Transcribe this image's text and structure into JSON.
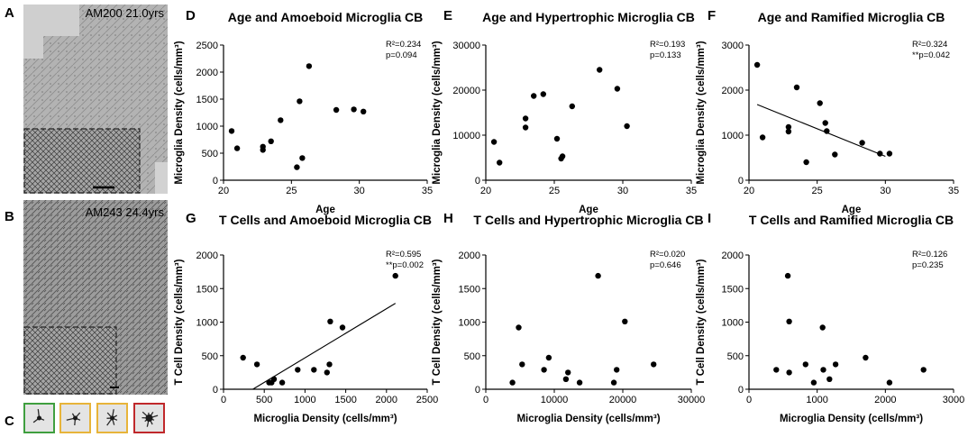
{
  "images": {
    "A": {
      "label": "A",
      "caption": "AM200 21.0yrs"
    },
    "B": {
      "label": "B",
      "caption": "AM243 24.4yrs"
    },
    "C": {
      "label": "C",
      "border_colors": [
        "#3f9f3f",
        "#e7b43a",
        "#e7b43a",
        "#c0282b"
      ]
    }
  },
  "chart_data": [
    {
      "id": "D",
      "type": "scatter",
      "title": "Age and Amoeboid Microglia CB",
      "xlabel": "Age",
      "ylabel": "Microglia Density (cells/mm³)",
      "xlim": [
        20,
        35
      ],
      "ylim": [
        0,
        2500
      ],
      "xticks": [
        20,
        25,
        30,
        35
      ],
      "yticks": [
        0,
        500,
        1000,
        1500,
        2000,
        2500
      ],
      "stat_r2": "R²=0.234",
      "stat_p": "p=0.094",
      "points": [
        [
          20.6,
          910
        ],
        [
          21.0,
          590
        ],
        [
          22.9,
          620
        ],
        [
          22.9,
          560
        ],
        [
          23.5,
          720
        ],
        [
          24.2,
          1110
        ],
        [
          25.4,
          240
        ],
        [
          25.6,
          1460
        ],
        [
          25.8,
          410
        ],
        [
          26.3,
          2110
        ],
        [
          28.3,
          1300
        ],
        [
          29.6,
          1310
        ],
        [
          30.3,
          1270
        ]
      ],
      "fit": null
    },
    {
      "id": "E",
      "type": "scatter",
      "title": "Age and Hypertrophic Microglia CB",
      "xlabel": "Age",
      "ylabel": "Microglia Density (cells/mm³)",
      "xlim": [
        20,
        35
      ],
      "ylim": [
        0,
        30000
      ],
      "xticks": [
        20,
        25,
        30,
        35
      ],
      "yticks": [
        0,
        10000,
        20000,
        30000
      ],
      "stat_r2": "R²=0.193",
      "stat_p": "p=0.133",
      "points": [
        [
          20.6,
          8500
        ],
        [
          21.0,
          3900
        ],
        [
          22.9,
          13700
        ],
        [
          22.9,
          11700
        ],
        [
          23.5,
          18700
        ],
        [
          24.2,
          19100
        ],
        [
          25.2,
          9200
        ],
        [
          25.5,
          4800
        ],
        [
          25.6,
          5300
        ],
        [
          26.3,
          16400
        ],
        [
          28.3,
          24500
        ],
        [
          29.6,
          20300
        ],
        [
          30.3,
          12000
        ]
      ],
      "fit": null
    },
    {
      "id": "F",
      "type": "scatter",
      "title": "Age and Ramified Microglia CB",
      "xlabel": "Age",
      "ylabel": "Microglia Density (cells/mm³)",
      "xlim": [
        20,
        35
      ],
      "ylim": [
        0,
        3000
      ],
      "xticks": [
        20,
        25,
        30,
        35
      ],
      "yticks": [
        0,
        1000,
        2000,
        3000
      ],
      "stat_r2": "R²=0.324",
      "stat_p": "**p=0.042",
      "points": [
        [
          20.6,
          2560
        ],
        [
          21.0,
          950
        ],
        [
          22.9,
          1180
        ],
        [
          22.9,
          1080
        ],
        [
          23.5,
          2060
        ],
        [
          24.2,
          400
        ],
        [
          25.2,
          1710
        ],
        [
          25.6,
          1270
        ],
        [
          25.7,
          1090
        ],
        [
          26.3,
          570
        ],
        [
          28.3,
          830
        ],
        [
          29.6,
          590
        ],
        [
          30.3,
          590
        ]
      ],
      "fit": [
        [
          20.6,
          1680
        ],
        [
          30.0,
          530
        ]
      ]
    },
    {
      "id": "G",
      "type": "scatter",
      "title": "T Cells and Amoeboid Microglia CB",
      "xlabel": "Microglia Density (cells/mm³)",
      "ylabel": "T Cell Density (cells/mm³)",
      "xlim": [
        0,
        2500
      ],
      "ylim": [
        0,
        2000
      ],
      "xticks": [
        0,
        500,
        1000,
        1500,
        2000,
        2500
      ],
      "yticks": [
        0,
        500,
        1000,
        1500,
        2000
      ],
      "stat_r2": "R²=0.595",
      "stat_p": "**p=0.002",
      "points": [
        [
          240,
          470
        ],
        [
          410,
          370
        ],
        [
          560,
          100
        ],
        [
          590,
          100
        ],
        [
          620,
          150
        ],
        [
          720,
          100
        ],
        [
          910,
          290
        ],
        [
          1110,
          290
        ],
        [
          1270,
          250
        ],
        [
          1300,
          370
        ],
        [
          1310,
          1010
        ],
        [
          1460,
          920
        ],
        [
          2110,
          1690
        ]
      ],
      "fit": [
        [
          360,
          0
        ],
        [
          2110,
          1280
        ]
      ]
    },
    {
      "id": "H",
      "type": "scatter",
      "title": "T Cells and Hypertrophic Microglia CB",
      "xlabel": "Microglia Density (cells/mm³)",
      "ylabel": "T Cell Density (cells/mm³)",
      "xlim": [
        0,
        30000
      ],
      "ylim": [
        0,
        2000
      ],
      "xticks": [
        0,
        10000,
        20000,
        30000
      ],
      "yticks": [
        0,
        500,
        1000,
        1500,
        2000
      ],
      "stat_r2": "R²=0.020",
      "stat_p": "p=0.646",
      "points": [
        [
          3900,
          100
        ],
        [
          4800,
          920
        ],
        [
          5300,
          370
        ],
        [
          8500,
          290
        ],
        [
          9200,
          470
        ],
        [
          11700,
          150
        ],
        [
          12000,
          250
        ],
        [
          13700,
          100
        ],
        [
          16400,
          1690
        ],
        [
          18700,
          100
        ],
        [
          19100,
          290
        ],
        [
          20300,
          1010
        ],
        [
          24500,
          370
        ]
      ],
      "fit": null
    },
    {
      "id": "I",
      "type": "scatter",
      "title": "T Cells and Ramified Microglia CB",
      "xlabel": "Microglia Density (cells/mm³)",
      "ylabel": "T Cell Density (cells/mm³)",
      "xlim": [
        0,
        3000
      ],
      "ylim": [
        0,
        2000
      ],
      "xticks": [
        0,
        1000,
        2000,
        3000
      ],
      "yticks": [
        0,
        500,
        1000,
        1500,
        2000
      ],
      "stat_r2": "R²=0.126",
      "stat_p": "p=0.235",
      "points": [
        [
          400,
          290
        ],
        [
          570,
          1690
        ],
        [
          590,
          1010
        ],
        [
          590,
          250
        ],
        [
          830,
          370
        ],
        [
          950,
          100
        ],
        [
          1080,
          920
        ],
        [
          1090,
          290
        ],
        [
          1180,
          150
        ],
        [
          1270,
          370
        ],
        [
          1710,
          470
        ],
        [
          2060,
          100
        ],
        [
          2560,
          290
        ]
      ],
      "fit": null
    }
  ]
}
